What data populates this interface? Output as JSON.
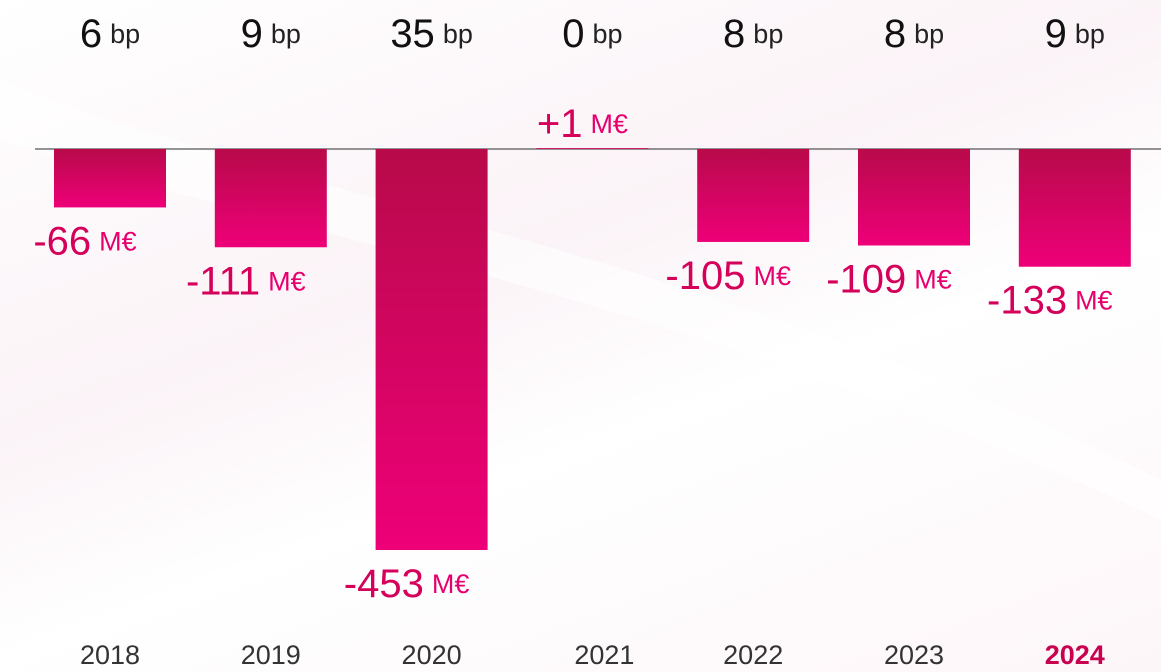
{
  "chart_data": {
    "type": "bar",
    "categories": [
      "2018",
      "2019",
      "2020",
      "2021",
      "2022",
      "2023",
      "2024"
    ],
    "values": [
      -66,
      -111,
      -453,
      1,
      -105,
      -109,
      -133
    ],
    "value_labels": [
      "-66",
      "-111",
      "-453",
      "+1",
      "-105",
      "-109",
      "-133"
    ],
    "value_unit": "M€",
    "bp_values": [
      6,
      9,
      35,
      0,
      8,
      8,
      9
    ],
    "bp_unit": "bp",
    "color": "#e6006e",
    "highlight": "2024"
  }
}
